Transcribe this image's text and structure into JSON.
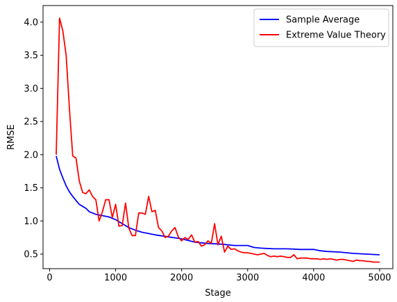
{
  "chart_data": {
    "type": "line",
    "title": "",
    "xlabel": "Stage",
    "ylabel": "RMSE",
    "xlim": [
      -100,
      5200
    ],
    "ylim": [
      0.28,
      4.25
    ],
    "xticks": [
      0,
      1000,
      2000,
      3000,
      4000,
      5000
    ],
    "xtick_labels": [
      "0",
      "1000",
      "2000",
      "3000",
      "4000",
      "5000"
    ],
    "yticks": [
      0.5,
      1.0,
      1.5,
      2.0,
      2.5,
      3.0,
      3.5,
      4.0
    ],
    "ytick_labels": [
      "0.5",
      "1.0",
      "1.5",
      "2.0",
      "2.5",
      "3.0",
      "3.5",
      "4.0"
    ],
    "grid": false,
    "legend_position": "top-right",
    "series": [
      {
        "name": "Sample Average",
        "color": "#0000ff",
        "x": [
          100,
          150,
          200,
          250,
          300,
          350,
          400,
          450,
          500,
          550,
          600,
          650,
          700,
          800,
          900,
          1000,
          1100,
          1200,
          1300,
          1400,
          1500,
          1600,
          1800,
          2000,
          2200,
          2400,
          2600,
          2800,
          3000,
          3100,
          3200,
          3400,
          3600,
          3800,
          4000,
          4100,
          4200,
          4400,
          4600,
          4800,
          5000
        ],
        "y": [
          1.98,
          1.78,
          1.65,
          1.53,
          1.44,
          1.37,
          1.31,
          1.25,
          1.22,
          1.19,
          1.14,
          1.12,
          1.1,
          1.08,
          1.06,
          1.02,
          0.96,
          0.9,
          0.86,
          0.83,
          0.81,
          0.79,
          0.76,
          0.73,
          0.68,
          0.66,
          0.65,
          0.63,
          0.63,
          0.6,
          0.59,
          0.58,
          0.58,
          0.57,
          0.57,
          0.55,
          0.54,
          0.53,
          0.51,
          0.5,
          0.49
        ]
      },
      {
        "name": "Extreme Value Theory",
        "color": "#ff0000",
        "x": [
          100,
          150,
          200,
          250,
          300,
          350,
          400,
          450,
          500,
          550,
          600,
          650,
          700,
          750,
          800,
          850,
          900,
          950,
          1000,
          1050,
          1100,
          1150,
          1200,
          1250,
          1300,
          1350,
          1400,
          1450,
          1500,
          1550,
          1600,
          1650,
          1700,
          1750,
          1800,
          1850,
          1900,
          1950,
          2000,
          2050,
          2100,
          2150,
          2200,
          2250,
          2300,
          2350,
          2400,
          2450,
          2500,
          2550,
          2600,
          2650,
          2700,
          2750,
          2800,
          2850,
          2900,
          2950,
          3000,
          3050,
          3100,
          3150,
          3200,
          3250,
          3300,
          3350,
          3400,
          3450,
          3500,
          3550,
          3600,
          3650,
          3700,
          3750,
          3800,
          3850,
          3900,
          3950,
          4000,
          4050,
          4100,
          4150,
          4200,
          4250,
          4300,
          4350,
          4400,
          4450,
          4500,
          4550,
          4600,
          4650,
          4700,
          4750,
          4800,
          4850,
          4900,
          4950,
          5000
        ],
        "y": [
          2.0,
          4.06,
          3.87,
          3.5,
          2.7,
          1.98,
          1.95,
          1.6,
          1.43,
          1.41,
          1.47,
          1.37,
          1.32,
          1.0,
          1.14,
          1.32,
          1.32,
          1.05,
          1.25,
          0.92,
          0.93,
          1.27,
          0.89,
          0.78,
          0.78,
          1.12,
          1.12,
          1.1,
          1.37,
          1.14,
          1.16,
          0.9,
          0.85,
          0.75,
          0.77,
          0.85,
          0.9,
          0.76,
          0.7,
          0.75,
          0.72,
          0.79,
          0.68,
          0.69,
          0.62,
          0.64,
          0.7,
          0.66,
          0.96,
          0.64,
          0.77,
          0.53,
          0.62,
          0.57,
          0.58,
          0.55,
          0.53,
          0.52,
          0.52,
          0.51,
          0.5,
          0.49,
          0.5,
          0.51,
          0.48,
          0.46,
          0.47,
          0.46,
          0.47,
          0.46,
          0.45,
          0.45,
          0.49,
          0.43,
          0.44,
          0.44,
          0.44,
          0.43,
          0.43,
          0.43,
          0.42,
          0.43,
          0.42,
          0.43,
          0.42,
          0.41,
          0.42,
          0.42,
          0.41,
          0.4,
          0.39,
          0.41,
          0.4,
          0.4,
          0.39,
          0.39,
          0.38,
          0.38,
          0.38
        ]
      }
    ]
  }
}
